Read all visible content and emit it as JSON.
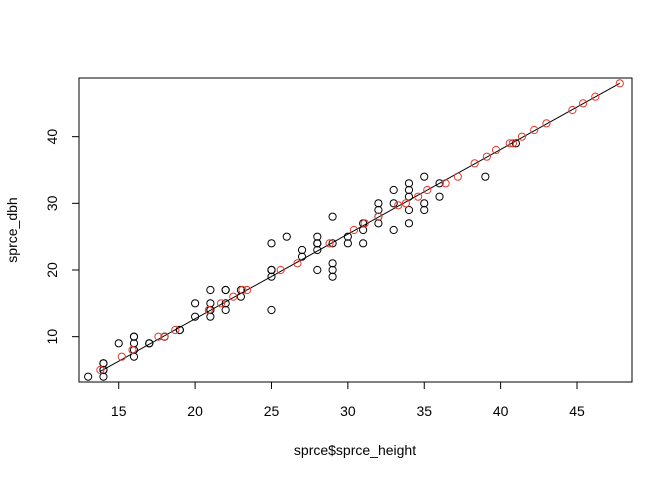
{
  "chart_data": {
    "type": "scatter",
    "title": "",
    "xlabel": "sprce$sprce_height",
    "ylabel": "sprce_dbh",
    "xlim": [
      12.4,
      48.6
    ],
    "ylim": [
      3.2,
      48.8
    ],
    "x_ticks": [
      15,
      20,
      25,
      30,
      35,
      40,
      45
    ],
    "y_ticks": [
      10,
      20,
      30,
      40
    ],
    "grid": false,
    "legend": "none",
    "colors": {
      "observed": "#000000",
      "fitted": "#e5372b",
      "line": "#000000"
    },
    "fit_line": {
      "x": [
        13.8,
        47.8
      ],
      "y": [
        4.8,
        48.0
      ]
    },
    "series": [
      {
        "x": [
          13,
          14,
          14,
          14,
          14,
          14,
          15,
          16,
          16,
          16,
          16,
          16,
          17,
          17,
          18,
          18,
          19,
          19,
          20,
          20,
          21,
          21,
          21,
          21,
          21,
          22,
          22,
          22,
          22,
          23,
          23,
          25,
          25,
          25,
          25,
          25,
          25,
          26,
          27,
          27,
          28,
          28,
          28,
          28,
          28,
          29,
          29,
          29,
          29,
          29,
          30,
          30,
          31,
          31,
          31,
          32,
          32,
          32,
          32,
          33,
          33,
          33,
          34,
          34,
          34,
          34,
          34,
          35,
          35,
          35,
          36,
          36,
          39,
          41
        ],
        "y": [
          4,
          4,
          5,
          5,
          6,
          6,
          9,
          7,
          8,
          9,
          10,
          10,
          9,
          9,
          10,
          10,
          11,
          11,
          13,
          15,
          13,
          14,
          14,
          15,
          17,
          14,
          15,
          17,
          17,
          16,
          17,
          14,
          19,
          20,
          20,
          20,
          24,
          25,
          22,
          23,
          20,
          23,
          24,
          24,
          25,
          19,
          20,
          21,
          24,
          28,
          24,
          25,
          24,
          26,
          27,
          27,
          28,
          29,
          30,
          26,
          30,
          32,
          27,
          29,
          31,
          32,
          33,
          29,
          30,
          34,
          31,
          33,
          34,
          39
        ]
      },
      {
        "x": [
          13.8,
          15.2,
          15.9,
          17.6,
          18.0,
          18.7,
          20.9,
          21.7,
          22.5,
          23.1,
          23.4,
          25.6,
          26.7,
          28.8,
          30.4,
          31.1,
          32.0,
          33.3,
          33.8,
          34.6,
          35.2,
          36.4,
          37.2,
          38.3,
          39.1,
          39.7,
          40.6,
          40.8,
          41.4,
          42.2,
          43.0,
          44.7,
          45.4,
          46.2,
          47.8
        ],
        "y": [
          5,
          7,
          8,
          10,
          10,
          11,
          14,
          15,
          16,
          17,
          17,
          20,
          21,
          24,
          26,
          27,
          28,
          29.7,
          30,
          31,
          32,
          33,
          34,
          36,
          37,
          38,
          39,
          39,
          40,
          41,
          42,
          44,
          45,
          46,
          48
        ]
      }
    ]
  }
}
